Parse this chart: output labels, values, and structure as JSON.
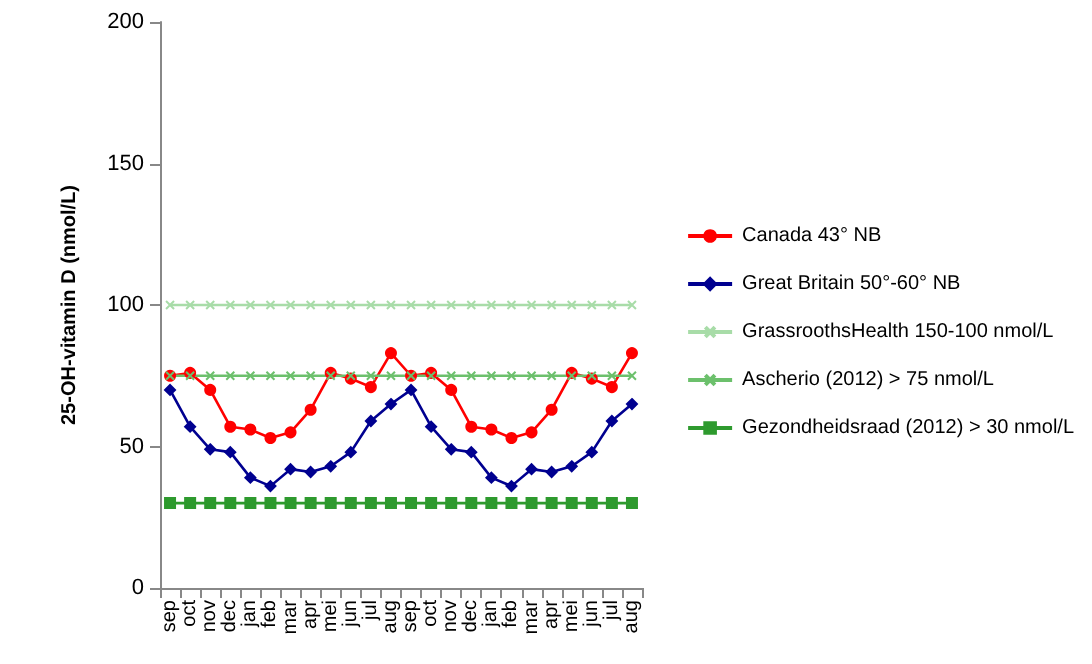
{
  "chart_data": {
    "type": "line",
    "ylabel": "25-OH-vitamin D (nmol/L)",
    "categories": [
      "sep",
      "oct",
      "nov",
      "dec",
      "jan",
      "feb",
      "mar",
      "apr",
      "mei",
      "jun",
      "jul",
      "aug",
      "sep",
      "oct",
      "nov",
      "dec",
      "jan",
      "feb",
      "mar",
      "apr",
      "mei",
      "jun",
      "jul",
      "aug"
    ],
    "series": [
      {
        "name": "Canada 43° NB",
        "color": "#ff0000",
        "marker": "circle",
        "values": [
          75,
          76,
          70,
          57,
          56,
          53,
          55,
          63,
          76,
          74,
          71,
          83,
          75,
          76,
          70,
          57,
          56,
          53,
          55,
          63,
          76,
          74,
          71,
          83
        ]
      },
      {
        "name": "Great Britain 50°-60° NB",
        "color": "#000090",
        "marker": "diamond",
        "values": [
          70,
          57,
          49,
          48,
          39,
          36,
          42,
          41,
          43,
          48,
          59,
          65,
          70,
          57,
          49,
          48,
          39,
          36,
          42,
          41,
          43,
          48,
          59,
          65
        ]
      },
      {
        "name": "GrassroothsHealth 150-100 nmol/L",
        "color": "#a8dca8",
        "marker": "cross",
        "values": [
          100,
          100,
          100,
          100,
          100,
          100,
          100,
          100,
          100,
          100,
          100,
          100,
          100,
          100,
          100,
          100,
          100,
          100,
          100,
          100,
          100,
          100,
          100,
          100
        ]
      },
      {
        "name": "Ascherio (2012) > 75 nmol/L",
        "color": "#6cc06c",
        "marker": "cross",
        "values": [
          75,
          75,
          75,
          75,
          75,
          75,
          75,
          75,
          75,
          75,
          75,
          75,
          75,
          75,
          75,
          75,
          75,
          75,
          75,
          75,
          75,
          75,
          75,
          75
        ]
      },
      {
        "name": "Gezondheidsraad (2012) > 30 nmol/L",
        "color": "#2e9a2e",
        "marker": "square",
        "values": [
          30,
          30,
          30,
          30,
          30,
          30,
          30,
          30,
          30,
          30,
          30,
          30,
          30,
          30,
          30,
          30,
          30,
          30,
          30,
          30,
          30,
          30,
          30,
          30
        ]
      }
    ],
    "ylim": [
      0,
      200
    ],
    "yticks": [
      0,
      50,
      100,
      150,
      200
    ],
    "grid": false,
    "legend": "right"
  }
}
